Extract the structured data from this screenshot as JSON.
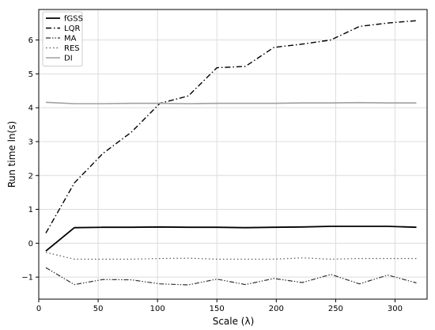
{
  "chart_data": {
    "type": "line",
    "title": "",
    "xlabel": "Scale (λ)",
    "ylabel": "Run time ln(s)",
    "xlim": [
      0,
      327
    ],
    "ylim": [
      -1.65,
      6.9
    ],
    "xticks": [
      0,
      50,
      100,
      150,
      200,
      250,
      300
    ],
    "yticks": [
      -1,
      0,
      1,
      2,
      3,
      4,
      5,
      6
    ],
    "grid": true,
    "legend_position": "top-left",
    "x": [
      6,
      30,
      54,
      78,
      102,
      126,
      150,
      174,
      198,
      222,
      246,
      270,
      294,
      318
    ],
    "series": [
      {
        "name": "fGSS",
        "color": "#000000",
        "dash": "solid",
        "width": 1.8,
        "values": [
          -0.23,
          0.46,
          0.47,
          0.47,
          0.48,
          0.47,
          0.47,
          0.46,
          0.47,
          0.48,
          0.5,
          0.5,
          0.5,
          0.47
        ]
      },
      {
        "name": "LQR",
        "color": "#000000",
        "dash": "dashdot",
        "width": 1.4,
        "values": [
          0.3,
          1.78,
          2.65,
          3.28,
          4.13,
          4.35,
          5.18,
          5.22,
          5.78,
          5.88,
          6.0,
          6.4,
          6.5,
          6.57
        ]
      },
      {
        "name": "MA",
        "color": "#333333",
        "dash": "dashdotdot",
        "width": 1.2,
        "values": [
          -0.72,
          -1.22,
          -1.07,
          -1.08,
          -1.2,
          -1.23,
          -1.06,
          -1.22,
          -1.04,
          -1.16,
          -0.92,
          -1.2,
          -0.94,
          -1.17
        ]
      },
      {
        "name": "RES",
        "color": "#555555",
        "dash": "dotted",
        "width": 1.2,
        "values": [
          -0.27,
          -0.47,
          -0.47,
          -0.47,
          -0.45,
          -0.44,
          -0.47,
          -0.47,
          -0.47,
          -0.43,
          -0.47,
          -0.45,
          -0.45,
          -0.45
        ]
      },
      {
        "name": "DI",
        "color": "#a0a0a0",
        "dash": "solid",
        "width": 1.6,
        "values": [
          4.16,
          4.12,
          4.12,
          4.13,
          4.13,
          4.12,
          4.13,
          4.13,
          4.13,
          4.14,
          4.14,
          4.15,
          4.14,
          4.14
        ]
      }
    ]
  }
}
